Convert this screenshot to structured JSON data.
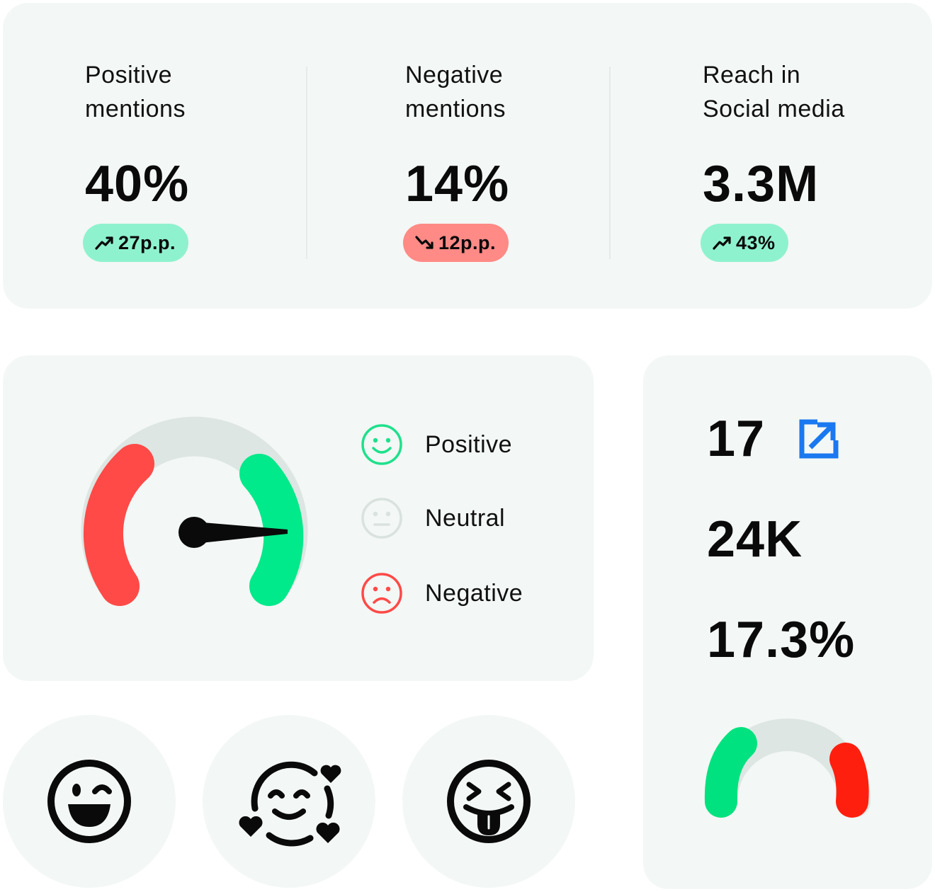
{
  "metrics": [
    {
      "label": "Positive\nmentions",
      "value": "40%",
      "change": "27p.p.",
      "trend": "up"
    },
    {
      "label": "Negative\nmentions",
      "value": "14%",
      "change": "12p.p.",
      "trend": "down"
    },
    {
      "label": "Reach in\nSocial media",
      "value": "3.3M",
      "change": "43%",
      "trend": "up"
    }
  ],
  "sentiment_gauge": {
    "needle_level_percent": 85,
    "legend": [
      {
        "label": "Positive",
        "icon": "smile-icon",
        "color": "#22e58f"
      },
      {
        "label": "Neutral",
        "icon": "neutral-face-icon",
        "color": "#d9e2de"
      },
      {
        "label": "Negative",
        "icon": "frown-icon",
        "color": "#ff4a47"
      }
    ]
  },
  "stats": {
    "items": [
      "17",
      "24K",
      "17.3%"
    ],
    "link_icon": "external-link-icon"
  },
  "emoji_row": [
    "winking-laugh-emoji-icon",
    "smiling-face-with-hearts-icon",
    "squinting-tongue-emoji-icon"
  ],
  "colors": {
    "card_bg": "#f3f7f5",
    "positive": "#00e98a",
    "negative": "#ff4a47",
    "neutral": "#dde6e2",
    "badge_up": "#8ff2cf",
    "badge_down": "#ff8a86",
    "accent_blue": "#1a78f0"
  }
}
